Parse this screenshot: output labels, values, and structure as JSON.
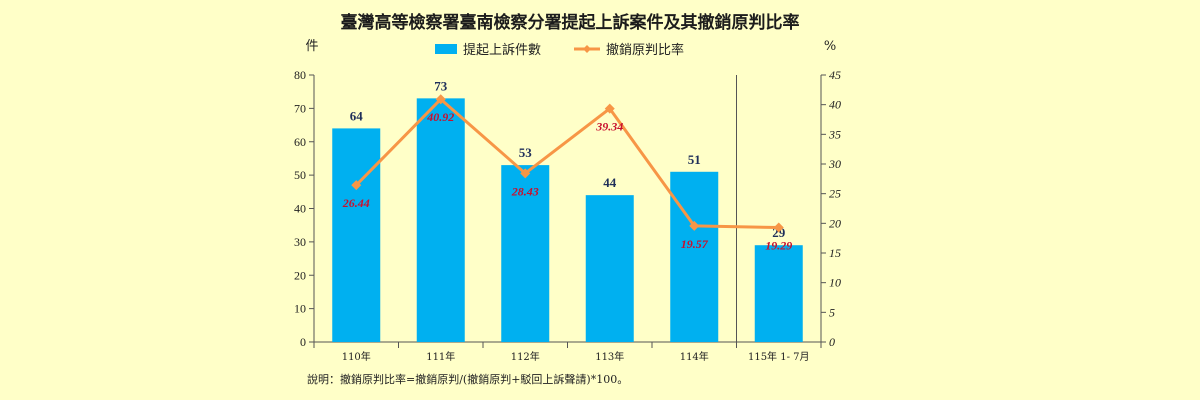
{
  "chart_data": {
    "type": "bar+line",
    "title": "臺灣高等檢察署臺南檢察分署提起上訴案件及其撤銷原判比率",
    "left_unit": "件",
    "right_unit": "%",
    "categories": [
      "110年",
      "111年",
      "112年",
      "113年",
      "114年",
      "115年 1- 7月"
    ],
    "series": [
      {
        "name": "提起上訴件數",
        "type": "bar",
        "axis": "left",
        "color": "#00b0f0",
        "values": [
          64,
          73,
          53,
          44,
          51,
          29
        ],
        "labels": [
          "64",
          "73",
          "53",
          "44",
          "51",
          "29"
        ]
      },
      {
        "name": "撤銷原判比率",
        "type": "line",
        "axis": "right",
        "color": "#f79646",
        "marker_color": "#f79646",
        "values": [
          26.44,
          40.92,
          28.43,
          39.34,
          19.57,
          19.29
        ],
        "labels": [
          "26.44",
          "40.92",
          "28.43",
          "39.34",
          "19.57",
          "19.29"
        ]
      }
    ],
    "y_left": {
      "min": 0,
      "max": 80,
      "ticks": [
        "0",
        "10",
        "20",
        "30",
        "40",
        "50",
        "60",
        "70",
        "80"
      ]
    },
    "y_right": {
      "min": 0,
      "max": 45,
      "ticks": [
        "0",
        "5",
        "10",
        "15",
        "20",
        "25",
        "30",
        "35",
        "40",
        "45"
      ]
    },
    "grid": false,
    "legend_position": "top-center",
    "note": "說明：撤銷原判比率=撤銷原判/(撤銷原判+駁回上訴聲請)*100。"
  }
}
